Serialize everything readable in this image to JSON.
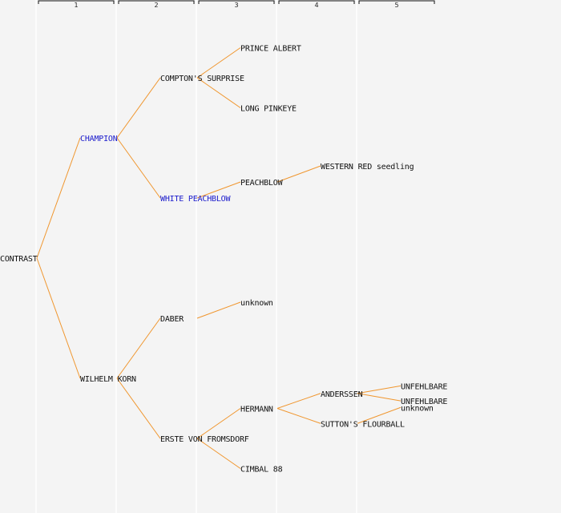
{
  "generation_headers": [
    "1",
    "2",
    "3",
    "4",
    "5"
  ],
  "colors": {
    "background": "#f4f4f4",
    "edge": "#f0962e",
    "column_divider": "#ffffff",
    "header_line": "#111111",
    "label_default": "#111111",
    "label_highlight": "#1a1acc"
  },
  "tree": {
    "label": "CONTRAST",
    "highlight": false,
    "children": [
      {
        "label": "CHAMPION",
        "highlight": true,
        "children": [
          {
            "label": "COMPTON'S SURPRISE",
            "highlight": false,
            "children": [
              {
                "label": "PRINCE ALBERT",
                "highlight": false,
                "children": []
              },
              {
                "label": "LONG PINKEYE",
                "highlight": false,
                "children": []
              }
            ]
          },
          {
            "label": "WHITE PEACHBLOW",
            "highlight": true,
            "children": [
              {
                "label": "PEACHBLOW",
                "highlight": false,
                "children": [
                  {
                    "label": "WESTERN RED seedling",
                    "highlight": false,
                    "children": []
                  }
                ]
              }
            ]
          }
        ]
      },
      {
        "label": "WILHELM KORN",
        "highlight": false,
        "children": [
          {
            "label": "DABER",
            "highlight": false,
            "children": [
              {
                "label": "unknown",
                "highlight": false,
                "children": []
              }
            ]
          },
          {
            "label": "ERSTE VON FROMSDORF",
            "highlight": false,
            "children": [
              {
                "label": "HERMANN",
                "highlight": false,
                "children": [
                  {
                    "label": "ANDERSSEN",
                    "highlight": false,
                    "children": [
                      {
                        "label": "UNFEHLBARE",
                        "highlight": false,
                        "children": []
                      },
                      {
                        "label": "UNFEHLBARE",
                        "highlight": false,
                        "children": []
                      }
                    ]
                  },
                  {
                    "label": "SUTTON'S FLOURBALL",
                    "highlight": false,
                    "children": [
                      {
                        "label": "unknown",
                        "highlight": false,
                        "children": []
                      }
                    ]
                  }
                ]
              },
              {
                "label": "CIMBAL 88",
                "highlight": false,
                "children": []
              }
            ]
          }
        ]
      }
    ]
  }
}
